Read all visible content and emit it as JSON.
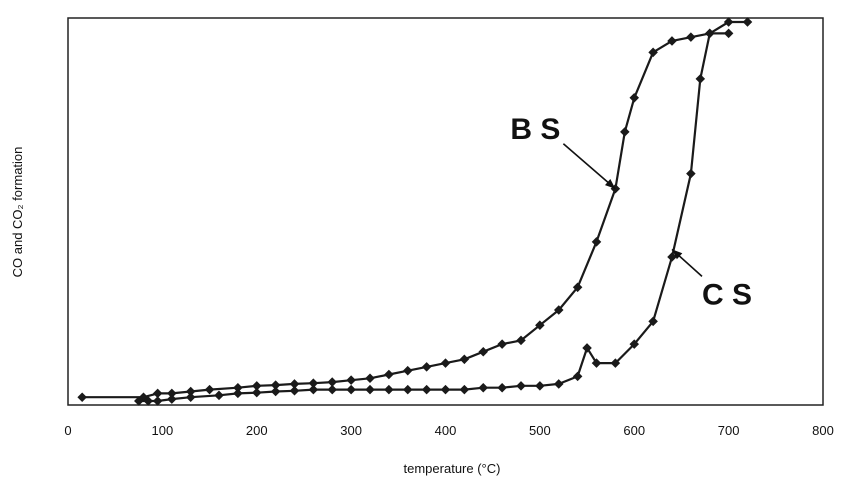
{
  "chart_data": {
    "type": "line",
    "title": "",
    "xlabel": "temperature (°C)",
    "ylabel": "CO and CO₂ formation",
    "xlim": [
      0,
      800
    ],
    "ylim": [
      0,
      1
    ],
    "x_ticks": [
      "0",
      "100",
      "200",
      "300",
      "400",
      "500",
      "600",
      "700",
      "800"
    ],
    "y_ticks": [],
    "grid": false,
    "legend": "none",
    "series": [
      {
        "name": "B S",
        "color": "#1a1a1a",
        "x": [
          15,
          80,
          95,
          110,
          130,
          150,
          180,
          200,
          220,
          240,
          260,
          280,
          300,
          320,
          340,
          360,
          380,
          400,
          420,
          440,
          460,
          480,
          500,
          520,
          540,
          560,
          580,
          590,
          600,
          620,
          640,
          660,
          680,
          700
        ],
        "y": [
          0.01,
          0.01,
          0.02,
          0.02,
          0.025,
          0.03,
          0.035,
          0.04,
          0.042,
          0.045,
          0.047,
          0.05,
          0.055,
          0.06,
          0.07,
          0.08,
          0.09,
          0.1,
          0.11,
          0.13,
          0.15,
          0.16,
          0.2,
          0.24,
          0.3,
          0.42,
          0.56,
          0.71,
          0.8,
          0.92,
          0.95,
          0.96,
          0.97,
          0.97
        ]
      },
      {
        "name": "C S",
        "color": "#1a1a1a",
        "x": [
          75,
          85,
          95,
          110,
          130,
          160,
          180,
          200,
          220,
          240,
          260,
          280,
          300,
          320,
          340,
          360,
          380,
          400,
          420,
          440,
          460,
          480,
          500,
          520,
          540,
          550,
          560,
          580,
          600,
          620,
          640,
          660,
          670,
          680,
          700,
          720
        ],
        "y": [
          0.0,
          0.0,
          0.0,
          0.005,
          0.01,
          0.015,
          0.02,
          0.022,
          0.025,
          0.027,
          0.03,
          0.03,
          0.03,
          0.03,
          0.03,
          0.03,
          0.03,
          0.03,
          0.03,
          0.035,
          0.035,
          0.04,
          0.04,
          0.045,
          0.065,
          0.14,
          0.1,
          0.1,
          0.15,
          0.21,
          0.38,
          0.6,
          0.85,
          0.97,
          1.0,
          1.0
        ]
      }
    ],
    "annotations": [
      {
        "text": "B S",
        "target": [
          580,
          0.56
        ]
      },
      {
        "text": "C S",
        "target": [
          640,
          0.4
        ]
      }
    ]
  }
}
